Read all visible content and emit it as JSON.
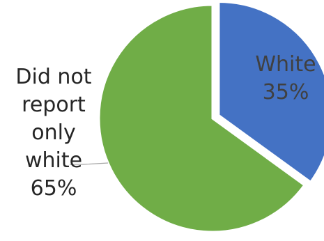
{
  "chart_data": {
    "type": "pie",
    "slices": [
      {
        "category": "White",
        "value": 35,
        "label_lines": [
          "White",
          "35%"
        ],
        "color": "#4472C4",
        "label_color": "#404040",
        "exploded": true
      },
      {
        "category": "Did not report only white",
        "value": 65,
        "label_lines": [
          "Did not",
          "report",
          "only",
          "white",
          "65%"
        ],
        "color": "#70AD47",
        "label_color": "#262626",
        "exploded": false
      }
    ],
    "start_angle_deg": 0,
    "direction": "clockwise",
    "leader_line_color": "#A6A6A6",
    "legend": "none",
    "title": ""
  }
}
